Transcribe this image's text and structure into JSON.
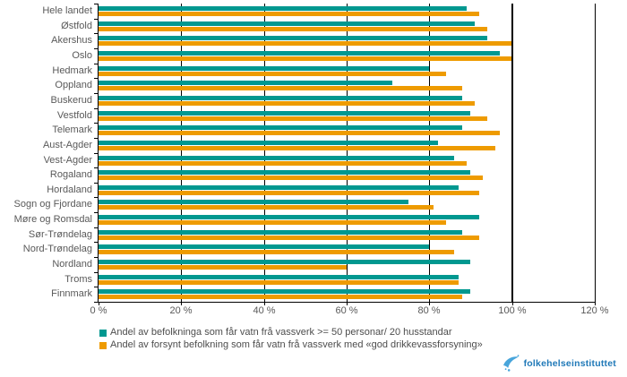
{
  "chart_data": {
    "type": "bar",
    "orientation": "horizontal",
    "title": "",
    "xlabel": "",
    "ylabel": "",
    "xlim": [
      0,
      120
    ],
    "x_tick_values": [
      0,
      20,
      40,
      60,
      80,
      100,
      120
    ],
    "x_tick_labels": [
      "0 %",
      "20 %",
      "40 %",
      "60 %",
      "80 %",
      "100 %",
      "120 %"
    ],
    "grid": "vertical lines at 20/40/60/80 behind bars, emphasized solid line at 100, border at 120",
    "legend_position": "bottom-left",
    "categories": [
      "Hele landet",
      "Østfold",
      "Akershus",
      "Oslo",
      "Hedmark",
      "Oppland",
      "Buskerud",
      "Vestfold",
      "Telemark",
      "Aust-Agder",
      "Vest-Agder",
      "Rogaland",
      "Hordaland",
      "Sogn og Fjordane",
      "Møre og Romsdal",
      "Sør-Trøndelag",
      "Nord-Trøndelag",
      "Nordland",
      "Troms",
      "Finnmark"
    ],
    "series": [
      {
        "name": "Andel av befolkninga som får vatn frå vassverk >= 50 personar/ 20 husstandar",
        "color": "#009890",
        "values": [
          89,
          91,
          94,
          97,
          80,
          71,
          88,
          90,
          88,
          82,
          86,
          90,
          87,
          75,
          92,
          88,
          80,
          90,
          87,
          90
        ]
      },
      {
        "name": "Andel av forsynt befolkning som får vatn frå vassverk med «god drikkevassforsyning»",
        "color": "#EE9B00",
        "values": [
          92,
          94,
          100,
          100,
          84,
          88,
          91,
          94,
          97,
          96,
          89,
          93,
          92,
          81,
          84,
          92,
          86,
          60,
          87,
          88
        ]
      }
    ]
  },
  "branding": {
    "logo_text": "folkehelseinstituttet",
    "logo_text_color": "#2079B8",
    "logo_icon_color": "#48A5DB",
    "logo_icon": "bird-swoosh-icon"
  },
  "style": {
    "label_color": "#595959",
    "legend_text_color": "#4d4d4d",
    "axis_color": "#000000"
  }
}
